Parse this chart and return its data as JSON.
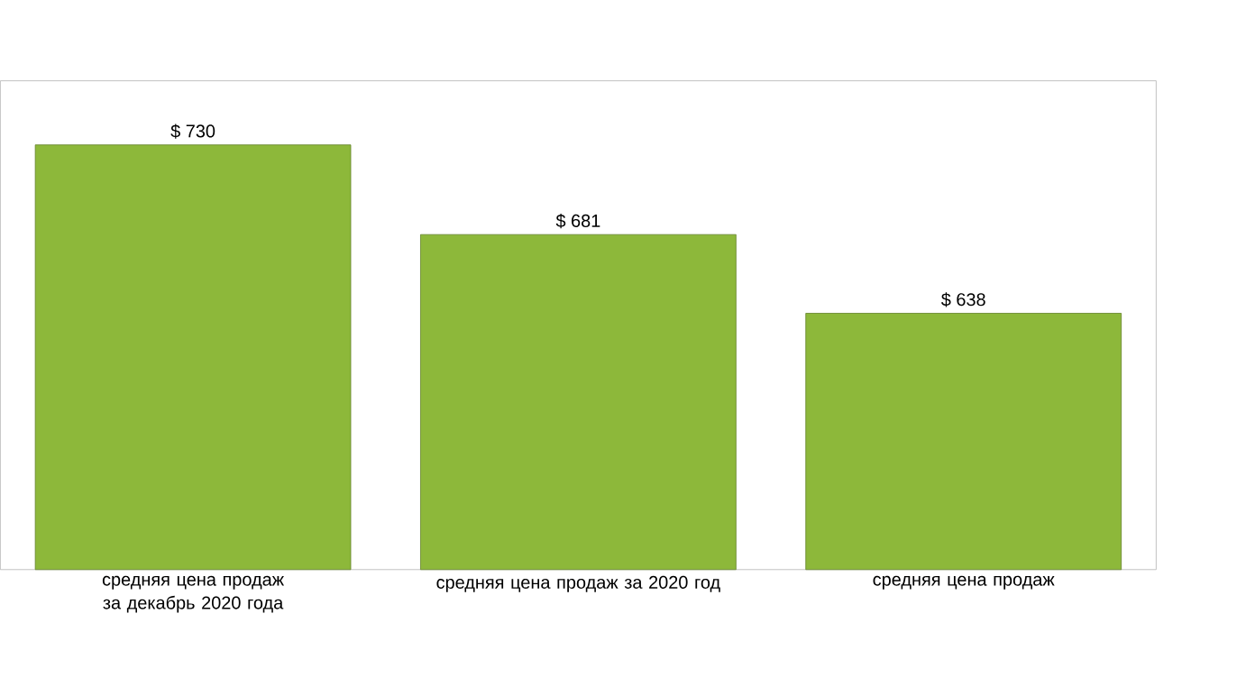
{
  "chart_data": {
    "type": "bar",
    "categories": [
      "средняя цена продаж за декабрь 2020 года",
      "средняя цена продаж за 2020 год",
      "средняя цена продаж"
    ],
    "values": [
      730,
      681,
      638
    ],
    "value_labels": [
      "$ 730",
      "$ 681",
      "$ 638"
    ],
    "color": "#8db83a",
    "ylim": [
      498,
      765
    ],
    "tick_labels": "x"
  }
}
